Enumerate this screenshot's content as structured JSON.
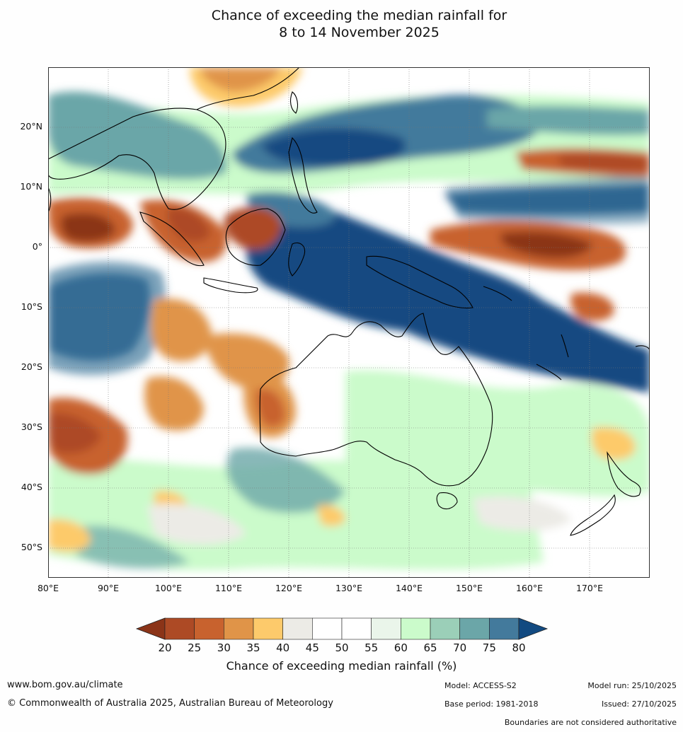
{
  "title": {
    "line1": "Chance of exceeding the median rainfall for",
    "line2": "8 to 14 November 2025"
  },
  "map": {
    "region": "Indian Ocean, Maritime Continent, Australia and South-West Pacific",
    "lat_labels": [
      "20°N",
      "10°N",
      "0°",
      "10°S",
      "20°S",
      "30°S",
      "40°S",
      "50°S"
    ],
    "lon_labels": [
      "80°E",
      "90°E",
      "100°E",
      "110°E",
      "120°E",
      "130°E",
      "140°E",
      "150°E",
      "160°E",
      "170°E"
    ]
  },
  "colorbar": {
    "title": "Chance of exceeding median rainfall (%)",
    "ticks": [
      "20",
      "25",
      "30",
      "35",
      "40",
      "45",
      "50",
      "55",
      "60",
      "65",
      "70",
      "75",
      "80"
    ],
    "colors": [
      "#8b3418",
      "#ad4a25",
      "#c8622e",
      "#e09448",
      "#fdca6b",
      "#ecebe6",
      "#ffffff",
      "#ffffff",
      "#eaf5ea",
      "#cbfbcb",
      "#9bcfb8",
      "#6ba6a8",
      "#437a9c",
      "#124a81"
    ]
  },
  "footer": {
    "website": "www.bom.gov.au/climate",
    "copyright": "© Commonwealth of Australia 2025, Australian Bureau of Meteorology",
    "model": "Model: ACCESS-S2",
    "base_period": "Base period: 1981-2018",
    "model_run": "Model run: 25/10/2025",
    "issued": "Issued: 27/10/2025",
    "disclaimer": "Boundaries are not considered authoritative"
  }
}
